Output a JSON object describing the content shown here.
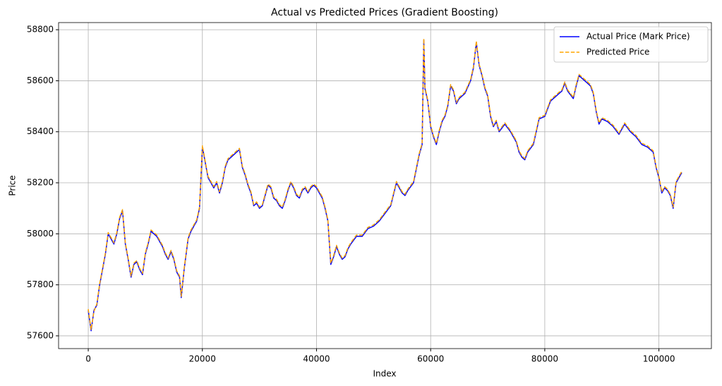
{
  "chart_data": {
    "type": "line",
    "title": "Actual vs Predicted Prices (Gradient Boosting)",
    "xlabel": "Index",
    "ylabel": "Price",
    "xlim": [
      -5200,
      109200
    ],
    "ylim": [
      57550,
      58828
    ],
    "xticks": [
      0,
      20000,
      40000,
      60000,
      80000,
      100000
    ],
    "yticks": [
      57600,
      57800,
      58000,
      58200,
      58400,
      58600,
      58800
    ],
    "grid": true,
    "legend": "upper right",
    "x": [
      0,
      500,
      1000,
      1500,
      2000,
      2500,
      3000,
      3500,
      4000,
      4500,
      5000,
      5500,
      6000,
      6500,
      7000,
      7500,
      8000,
      8500,
      9000,
      9500,
      10000,
      10500,
      11000,
      11500,
      12000,
      13000,
      13500,
      14000,
      14500,
      15000,
      15500,
      16000,
      16300,
      16800,
      17500,
      18000,
      18500,
      19000,
      19500,
      20000,
      20500,
      21000,
      21500,
      22000,
      22500,
      23000,
      23500,
      24000,
      24500,
      25000,
      25500,
      26000,
      26500,
      27000,
      27500,
      28000,
      28500,
      29000,
      29500,
      30000,
      30500,
      31000,
      31500,
      32000,
      32500,
      33000,
      33500,
      34000,
      34500,
      35000,
      35500,
      36000,
      36500,
      37000,
      37500,
      38000,
      38500,
      39000,
      39500,
      40000,
      40500,
      41000,
      41500,
      42000,
      42500,
      43000,
      43500,
      44000,
      44500,
      45000,
      45500,
      46000,
      47000,
      48000,
      49000,
      50000,
      51000,
      52000,
      53000,
      54000,
      55000,
      55500,
      56000,
      57000,
      58000,
      58500,
      58800,
      59000,
      59500,
      60000,
      60500,
      61000,
      61500,
      62000,
      62500,
      63000,
      63500,
      64000,
      64500,
      65000,
      66000,
      67000,
      67500,
      68000,
      68500,
      69000,
      69500,
      70000,
      70500,
      71000,
      71500,
      72000,
      73000,
      74000,
      75000,
      75500,
      76000,
      76500,
      77000,
      78000,
      78500,
      79000,
      80000,
      80500,
      81000,
      82000,
      83000,
      83500,
      84000,
      85000,
      85500,
      86000,
      87000,
      88000,
      88500,
      89000,
      89500,
      90000,
      91000,
      92000,
      93000,
      94000,
      95000,
      96000,
      97000,
      98000,
      99000,
      99500,
      100000,
      100500,
      101000,
      101500,
      102000,
      102500,
      103000,
      104000
    ],
    "series": [
      {
        "name": "Actual Price (Mark Price)",
        "color": "#0000ff",
        "dash": false,
        "values": [
          57700,
          57620,
          57700,
          57720,
          57800,
          57860,
          57920,
          58000,
          57980,
          57960,
          58000,
          58060,
          58090,
          57960,
          57900,
          57830,
          57880,
          57890,
          57860,
          57840,
          57920,
          57960,
          58010,
          58000,
          57990,
          57950,
          57920,
          57900,
          57930,
          57900,
          57850,
          57830,
          57750,
          57860,
          57980,
          58010,
          58030,
          58050,
          58100,
          58340,
          58280,
          58220,
          58200,
          58180,
          58200,
          58160,
          58200,
          58260,
          58290,
          58300,
          58310,
          58320,
          58330,
          58260,
          58230,
          58190,
          58160,
          58110,
          58120,
          58100,
          58110,
          58150,
          58190,
          58180,
          58140,
          58130,
          58110,
          58100,
          58130,
          58170,
          58200,
          58180,
          58150,
          58140,
          58170,
          58180,
          58160,
          58180,
          58190,
          58180,
          58160,
          58140,
          58100,
          58050,
          57880,
          57910,
          57950,
          57920,
          57900,
          57910,
          57940,
          57960,
          57990,
          57990,
          58020,
          58030,
          58050,
          58080,
          58110,
          58200,
          58160,
          58150,
          58170,
          58200,
          58310,
          58350,
          58760,
          58570,
          58520,
          58420,
          58380,
          58350,
          58400,
          58440,
          58460,
          58500,
          58580,
          58560,
          58510,
          58530,
          58550,
          58600,
          58650,
          58750,
          58660,
          58620,
          58570,
          58540,
          58460,
          58420,
          58440,
          58400,
          58430,
          58400,
          58360,
          58320,
          58300,
          58290,
          58320,
          58350,
          58400,
          58450,
          58460,
          58490,
          58520,
          58540,
          58560,
          58590,
          58560,
          58530,
          58580,
          58620,
          58600,
          58580,
          58550,
          58480,
          58430,
          58450,
          58440,
          58420,
          58390,
          58430,
          58400,
          58380,
          58350,
          58340,
          58320,
          58260,
          58220,
          58160,
          58180,
          58170,
          58150,
          58100,
          58200,
          58240
        ]
      },
      {
        "name": "Predicted Price",
        "color": "#ffa500",
        "dash": true,
        "values": [
          57705,
          57625,
          57695,
          57725,
          57805,
          57865,
          57925,
          58005,
          57985,
          57965,
          58005,
          58065,
          58095,
          57965,
          57905,
          57835,
          57885,
          57895,
          57865,
          57845,
          57925,
          57965,
          58015,
          58005,
          57995,
          57955,
          57925,
          57905,
          57935,
          57905,
          57855,
          57835,
          57755,
          57865,
          57985,
          58015,
          58035,
          58055,
          58105,
          58345,
          58285,
          58225,
          58205,
          58185,
          58205,
          58165,
          58205,
          58265,
          58295,
          58305,
          58315,
          58325,
          58335,
          58265,
          58235,
          58195,
          58165,
          58115,
          58125,
          58105,
          58115,
          58155,
          58195,
          58185,
          58145,
          58135,
          58115,
          58105,
          58135,
          58175,
          58205,
          58185,
          58155,
          58145,
          58175,
          58185,
          58165,
          58185,
          58195,
          58185,
          58165,
          58145,
          58105,
          58055,
          57885,
          57915,
          57955,
          57925,
          57905,
          57915,
          57945,
          57965,
          57995,
          57995,
          58025,
          58035,
          58055,
          58085,
          58115,
          58205,
          58165,
          58155,
          58175,
          58205,
          58315,
          58355,
          58765,
          58575,
          58525,
          58425,
          58385,
          58355,
          58405,
          58445,
          58465,
          58505,
          58585,
          58565,
          58515,
          58535,
          58555,
          58605,
          58655,
          58755,
          58665,
          58625,
          58575,
          58545,
          58465,
          58425,
          58445,
          58405,
          58435,
          58405,
          58365,
          58325,
          58305,
          58295,
          58325,
          58355,
          58405,
          58455,
          58465,
          58495,
          58525,
          58545,
          58565,
          58595,
          58565,
          58535,
          58585,
          58625,
          58605,
          58585,
          58555,
          58485,
          58435,
          58455,
          58445,
          58425,
          58395,
          58435,
          58405,
          58385,
          58355,
          58345,
          58325,
          58265,
          58225,
          58165,
          58185,
          58175,
          58155,
          58105,
          58205,
          58245
        ]
      }
    ]
  }
}
